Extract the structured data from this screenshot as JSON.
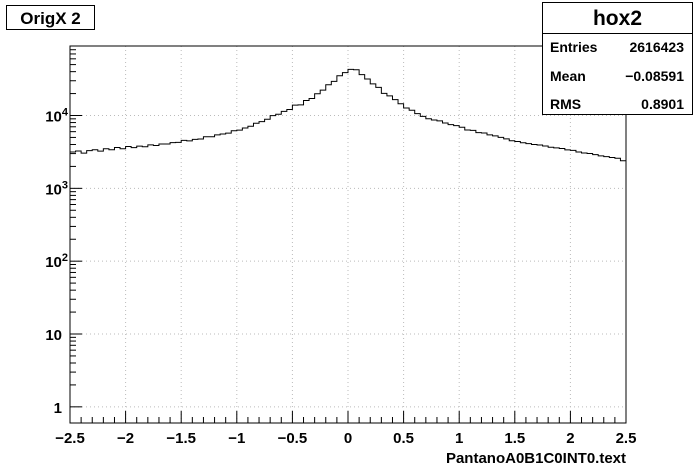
{
  "chart_data": {
    "type": "histogram",
    "title": "OrigX 2",
    "xlabel": "PantanoA0B1C0INT0.text",
    "ylabel": "",
    "log_y": true,
    "grid": true,
    "xlim": [
      -2.5,
      2.5
    ],
    "ylim": [
      0.6,
      90000
    ],
    "x_ticks": [
      "−2.5",
      "−2",
      "−1.5",
      "−1",
      "−0.5",
      "0",
      "0.5",
      "1",
      "1.5",
      "2",
      "2.5"
    ],
    "x_tick_values": [
      -2.5,
      -2,
      -1.5,
      -1,
      -0.5,
      0,
      0.5,
      1,
      1.5,
      2,
      2.5
    ],
    "y_ticks": [
      {
        "value": 1,
        "base": "1",
        "exp": ""
      },
      {
        "value": 10,
        "base": "10",
        "exp": ""
      },
      {
        "value": 100,
        "base": "10",
        "exp": "2"
      },
      {
        "value": 1000,
        "base": "10",
        "exp": "3"
      },
      {
        "value": 10000,
        "base": "10",
        "exp": "4"
      }
    ],
    "bins": 100,
    "values": [
      3150,
      3250,
      3040,
      3300,
      3390,
      3240,
      3500,
      3380,
      3640,
      3490,
      3760,
      3620,
      3800,
      3720,
      3950,
      3880,
      4070,
      4070,
      4240,
      4270,
      4550,
      4480,
      4710,
      4750,
      5110,
      5100,
      5420,
      5580,
      5720,
      6170,
      6300,
      6740,
      7130,
      7840,
      8250,
      8900,
      9960,
      10400,
      11400,
      12100,
      13900,
      14000,
      16100,
      17100,
      19900,
      22300,
      26400,
      29400,
      35200,
      38800,
      43000,
      42500,
      36400,
      31700,
      27200,
      24300,
      20100,
      18600,
      16500,
      14500,
      12700,
      11800,
      10600,
      9740,
      9020,
      8690,
      8430,
      7900,
      7500,
      7270,
      6900,
      6330,
      6240,
      5810,
      5750,
      5420,
      5250,
      5000,
      4780,
      4510,
      4390,
      4220,
      4110,
      4000,
      3930,
      3820,
      3670,
      3600,
      3530,
      3370,
      3320,
      3160,
      3060,
      3010,
      2900,
      2790,
      2730,
      2650,
      2590,
      2390
    ],
    "stats": {
      "name": "hox2",
      "entries_label": "Entries",
      "entries": "2616423",
      "mean_label": "Mean",
      "mean": "−0.08591",
      "rms_label": "RMS",
      "rms": "0.8901"
    }
  }
}
